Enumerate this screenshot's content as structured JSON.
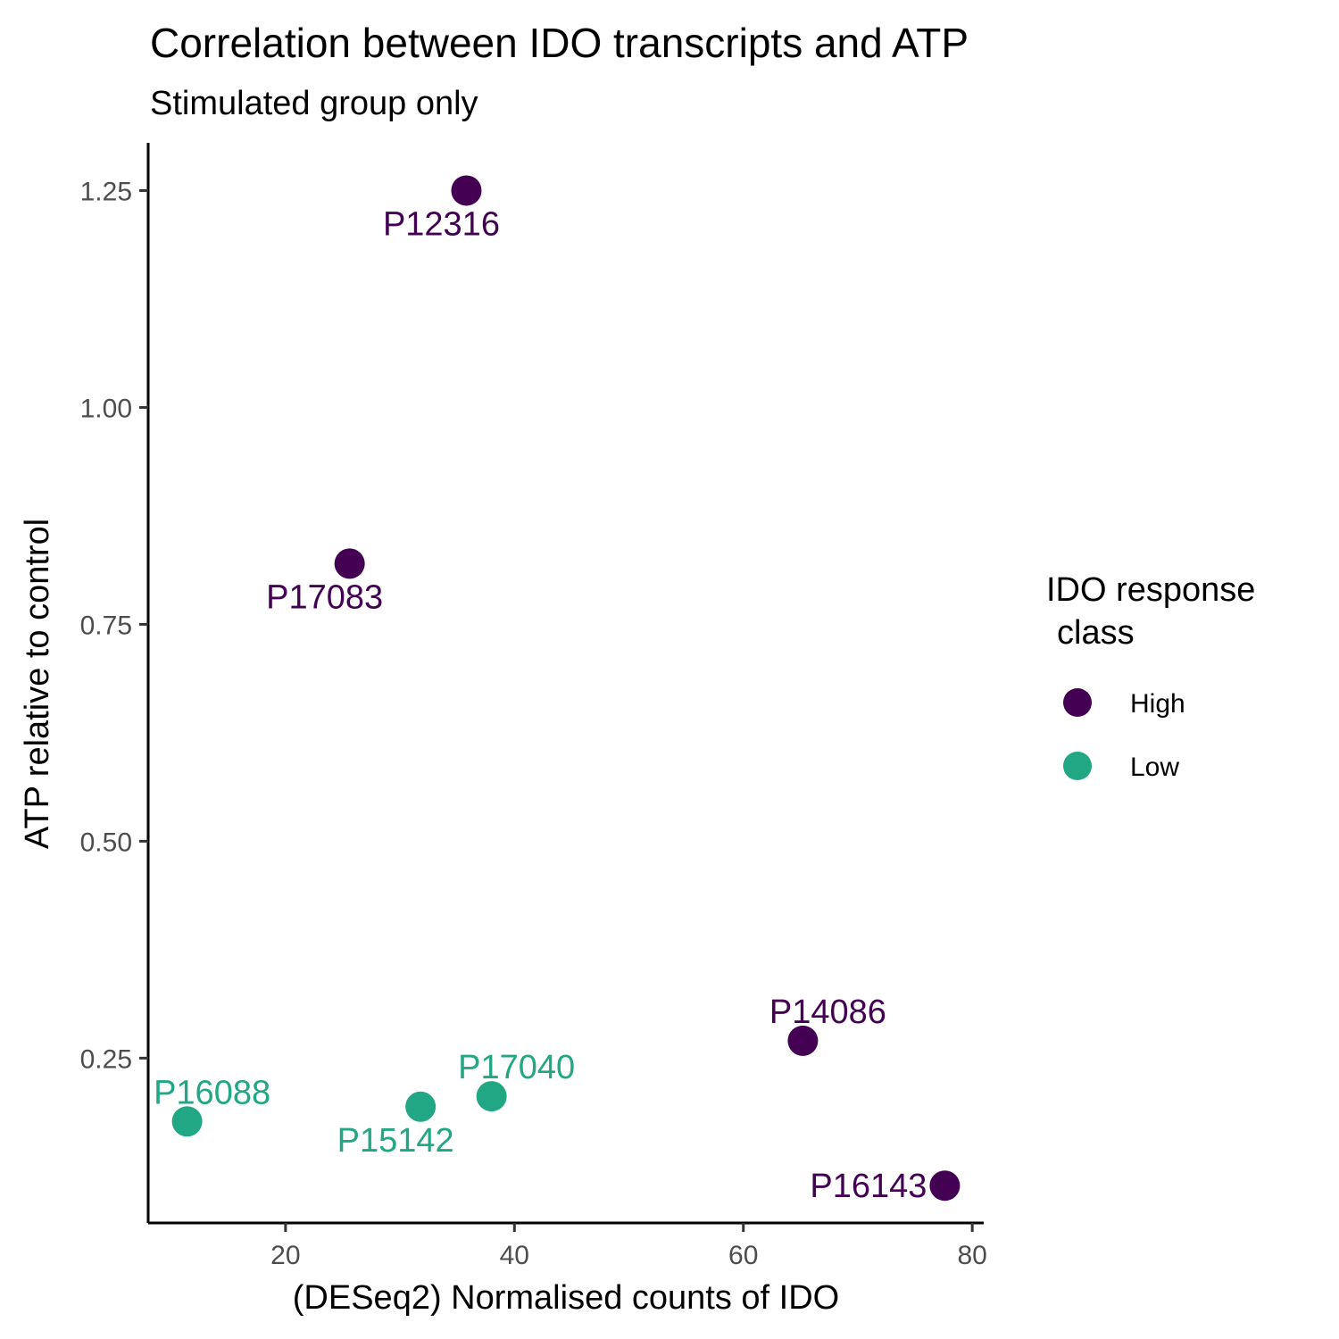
{
  "chart_data": {
    "type": "scatter",
    "title": "Correlation between IDO transcripts and ATP",
    "subtitle": "Stimulated group only",
    "xlabel": "(DESeq2) Normalised counts of IDO",
    "ylabel": "ATP relative to control",
    "xlim": [
      8,
      81
    ],
    "ylim": [
      0.06,
      1.305
    ],
    "xticks": [
      20,
      40,
      60,
      80
    ],
    "xtick_labels": [
      "20",
      "40",
      "60",
      "80"
    ],
    "yticks": [
      0.25,
      0.5,
      0.75,
      1.0,
      1.25
    ],
    "ytick_labels": [
      "0.25",
      "0.50",
      "0.75",
      "1.00",
      "1.25"
    ],
    "grid": false,
    "legend": {
      "title_line1": "IDO response",
      "title_line2": "class",
      "position": "right",
      "entries": [
        {
          "label": "High",
          "color": "#440154"
        },
        {
          "label": "Low",
          "color": "#21A784"
        }
      ]
    },
    "series": [
      {
        "name": "High",
        "color": "#440154",
        "points": [
          {
            "x": 35.8,
            "y": 1.25,
            "label": "P12316",
            "label_pos": "below"
          },
          {
            "x": 25.6,
            "y": 0.82,
            "label": "P17083",
            "label_pos": "below"
          },
          {
            "x": 65.2,
            "y": 0.27,
            "label": "P14086",
            "label_pos": "above"
          },
          {
            "x": 77.6,
            "y": 0.103,
            "label": "P16143",
            "label_pos": "left"
          }
        ]
      },
      {
        "name": "Low",
        "color": "#21A784",
        "points": [
          {
            "x": 11.4,
            "y": 0.177,
            "label": "P16088",
            "label_pos": "above"
          },
          {
            "x": 31.8,
            "y": 0.194,
            "label": "P15142",
            "label_pos": "below"
          },
          {
            "x": 38.0,
            "y": 0.206,
            "label": "P17040",
            "label_pos": "above"
          }
        ]
      }
    ]
  }
}
